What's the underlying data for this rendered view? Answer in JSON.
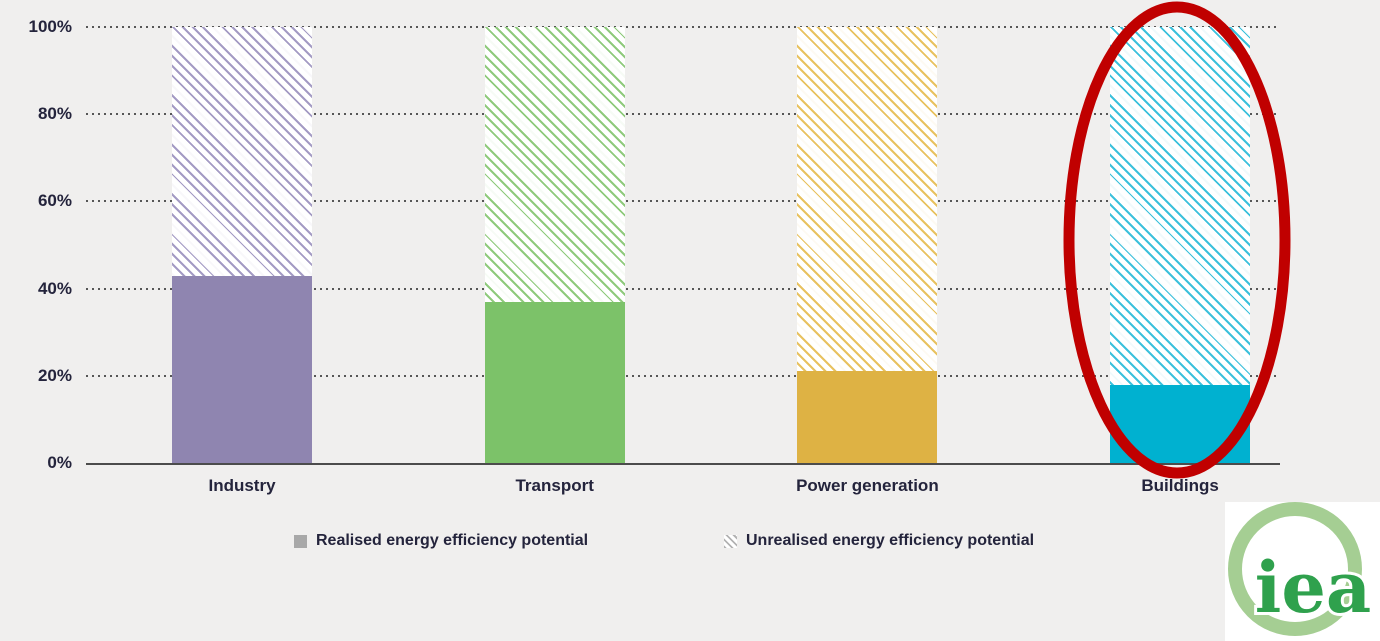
{
  "chart_data": {
    "type": "bar",
    "subtype": "stacked-100-percent-column",
    "title": "",
    "categories": [
      "Industry",
      "Transport",
      "Power generation",
      "Buildings"
    ],
    "series": [
      {
        "name": "Realised energy efficiency potential",
        "style": "solid",
        "values": [
          43,
          37,
          21,
          18
        ]
      },
      {
        "name": "Unrealised energy efficiency potential",
        "style": "diagonal-hatch",
        "values": [
          57,
          63,
          79,
          82
        ]
      }
    ],
    "category_colors": [
      "#8f85b0",
      "#7cc269",
      "#deb244",
      "#00b1d0"
    ],
    "category_hatch_colors": [
      "#a49bc4",
      "#8fca7c",
      "#e8c260",
      "#3cc1dc"
    ],
    "yticks": [
      "0%",
      "20%",
      "40%",
      "60%",
      "80%",
      "100%"
    ],
    "ylim": [
      0,
      100
    ],
    "xlabel": "",
    "ylabel": "",
    "grid": "dotted-horizontal",
    "legend_position": "bottom",
    "annotations": [
      "red ellipse circling the Buildings bar"
    ]
  },
  "legend": {
    "items": [
      {
        "label": "Realised energy efficiency potential",
        "marker": "solid-gray-square",
        "color": "#a8a8a8"
      },
      {
        "label": "Unrealised energy efficiency potential",
        "marker": "hatched-gray-square",
        "color": "#b3b3b3"
      }
    ]
  },
  "annotation": {
    "shape": "ellipse",
    "color": "#c00000",
    "highlights": "Buildings"
  },
  "logo": {
    "text": "iea",
    "ring_color": "#a5ce93",
    "text_color": "#2fa14d"
  },
  "colors": {
    "background": "#f0efee",
    "axis": "#4c4c4c",
    "grid_dots": "#3b3b3b",
    "text": "#24243c"
  }
}
